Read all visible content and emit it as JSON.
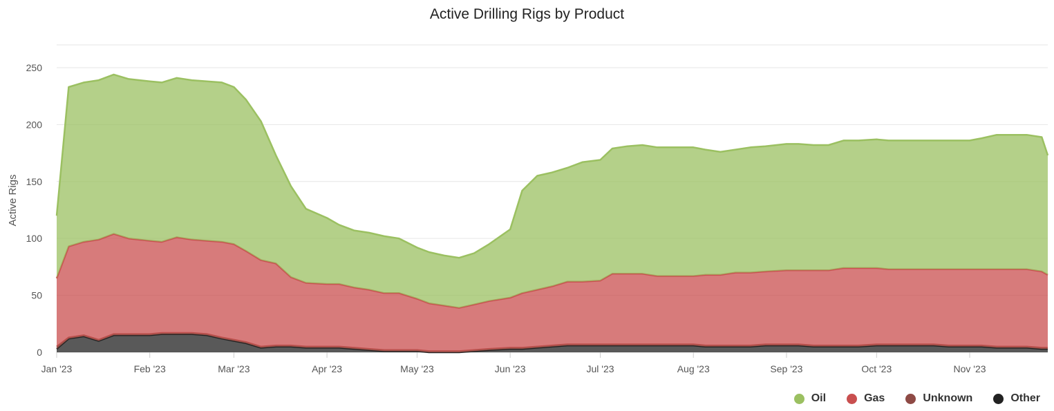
{
  "chart_data": {
    "type": "area",
    "stacked": true,
    "title": "Active Drilling Rigs by Product",
    "ylabel": "Active Rigs",
    "xlabel": "",
    "ylim": [
      0,
      270
    ],
    "yticks": [
      0,
      50,
      100,
      150,
      200,
      250
    ],
    "xlim": [
      "2023-01-01",
      "2023-11-27"
    ],
    "x_ticks": [
      {
        "date": "2023-01-01",
        "label": "Jan '23"
      },
      {
        "date": "2023-02-01",
        "label": "Feb '23"
      },
      {
        "date": "2023-03-01",
        "label": "Mar '23"
      },
      {
        "date": "2023-04-01",
        "label": "Apr '23"
      },
      {
        "date": "2023-05-01",
        "label": "May '23"
      },
      {
        "date": "2023-06-01",
        "label": "Jun '23"
      },
      {
        "date": "2023-07-01",
        "label": "Jul '23"
      },
      {
        "date": "2023-08-01",
        "label": "Aug '23"
      },
      {
        "date": "2023-09-01",
        "label": "Sep '23"
      },
      {
        "date": "2023-10-01",
        "label": "Oct '23"
      },
      {
        "date": "2023-11-01",
        "label": "Nov '23"
      }
    ],
    "grid": true,
    "legend_position": "bottom-right",
    "x": [
      "2023-01-01",
      "2023-01-05",
      "2023-01-10",
      "2023-01-15",
      "2023-01-20",
      "2023-01-25",
      "2023-02-01",
      "2023-02-05",
      "2023-02-10",
      "2023-02-15",
      "2023-02-20",
      "2023-02-25",
      "2023-03-01",
      "2023-03-05",
      "2023-03-10",
      "2023-03-15",
      "2023-03-20",
      "2023-03-25",
      "2023-04-01",
      "2023-04-05",
      "2023-04-10",
      "2023-04-15",
      "2023-04-20",
      "2023-04-25",
      "2023-05-01",
      "2023-05-05",
      "2023-05-10",
      "2023-05-15",
      "2023-05-20",
      "2023-05-25",
      "2023-06-01",
      "2023-06-05",
      "2023-06-10",
      "2023-06-15",
      "2023-06-20",
      "2023-06-25",
      "2023-07-01",
      "2023-07-05",
      "2023-07-10",
      "2023-07-15",
      "2023-07-20",
      "2023-07-25",
      "2023-08-01",
      "2023-08-05",
      "2023-08-10",
      "2023-08-15",
      "2023-08-20",
      "2023-08-25",
      "2023-09-01",
      "2023-09-05",
      "2023-09-10",
      "2023-09-15",
      "2023-09-20",
      "2023-09-25",
      "2023-10-01",
      "2023-10-05",
      "2023-10-10",
      "2023-10-15",
      "2023-10-20",
      "2023-10-25",
      "2023-11-01",
      "2023-11-05",
      "2023-11-10",
      "2023-11-15",
      "2023-11-20",
      "2023-11-25",
      "2023-11-27"
    ],
    "series": [
      {
        "name": "Other",
        "color": "#222222",
        "values": [
          3,
          12,
          14,
          10,
          15,
          15,
          15,
          16,
          16,
          16,
          15,
          12,
          10,
          8,
          4,
          5,
          5,
          4,
          4,
          4,
          3,
          2,
          1,
          1,
          1,
          0,
          0,
          0,
          1,
          2,
          3,
          3,
          4,
          5,
          6,
          6,
          6,
          6,
          6,
          6,
          6,
          6,
          6,
          5,
          5,
          5,
          5,
          6,
          6,
          6,
          5,
          5,
          5,
          5,
          6,
          6,
          6,
          6,
          6,
          5,
          5,
          5,
          4,
          4,
          4,
          3,
          3
        ]
      },
      {
        "name": "Unknown",
        "color": "#A0524A",
        "values": [
          2,
          1,
          1,
          1,
          1,
          1,
          1,
          1,
          1,
          1,
          1,
          1,
          1,
          1,
          1,
          1,
          1,
          1,
          1,
          1,
          1,
          1,
          1,
          1,
          1,
          1,
          1,
          1,
          1,
          1,
          1,
          1,
          1,
          1,
          1,
          1,
          1,
          1,
          1,
          1,
          1,
          1,
          1,
          1,
          1,
          1,
          1,
          1,
          1,
          1,
          1,
          1,
          1,
          1,
          1,
          1,
          1,
          1,
          1,
          1,
          1,
          1,
          1,
          1,
          1,
          1,
          1
        ]
      },
      {
        "name": "Gas",
        "color": "#C94F4F",
        "values": [
          60,
          80,
          82,
          88,
          88,
          84,
          82,
          80,
          84,
          82,
          82,
          84,
          84,
          80,
          76,
          72,
          60,
          56,
          55,
          55,
          53,
          52,
          50,
          50,
          45,
          42,
          40,
          38,
          40,
          42,
          44,
          48,
          50,
          52,
          55,
          55,
          56,
          62,
          62,
          62,
          60,
          60,
          60,
          62,
          62,
          64,
          64,
          64,
          65,
          65,
          66,
          66,
          68,
          68,
          67,
          66,
          66,
          66,
          66,
          67,
          67,
          67,
          68,
          68,
          68,
          67,
          64
        ]
      },
      {
        "name": "Oil",
        "color": "#9BC061",
        "values": [
          55,
          140,
          140,
          140,
          140,
          140,
          140,
          140,
          140,
          140,
          140,
          140,
          138,
          133,
          122,
          95,
          80,
          65,
          58,
          52,
          50,
          50,
          50,
          48,
          45,
          45,
          44,
          44,
          45,
          50,
          60,
          90,
          100,
          100,
          100,
          105,
          106,
          110,
          112,
          113,
          113,
          113,
          113,
          110,
          108,
          108,
          110,
          110,
          111,
          111,
          110,
          110,
          112,
          112,
          113,
          113,
          113,
          113,
          113,
          113,
          113,
          115,
          118,
          118,
          118,
          118,
          105
        ]
      }
    ]
  },
  "legend": [
    {
      "label": "Oil",
      "color": "#9BC061"
    },
    {
      "label": "Gas",
      "color": "#C94F4F"
    },
    {
      "label": "Unknown",
      "color": "#8E4A45"
    },
    {
      "label": "Other",
      "color": "#222222"
    }
  ]
}
